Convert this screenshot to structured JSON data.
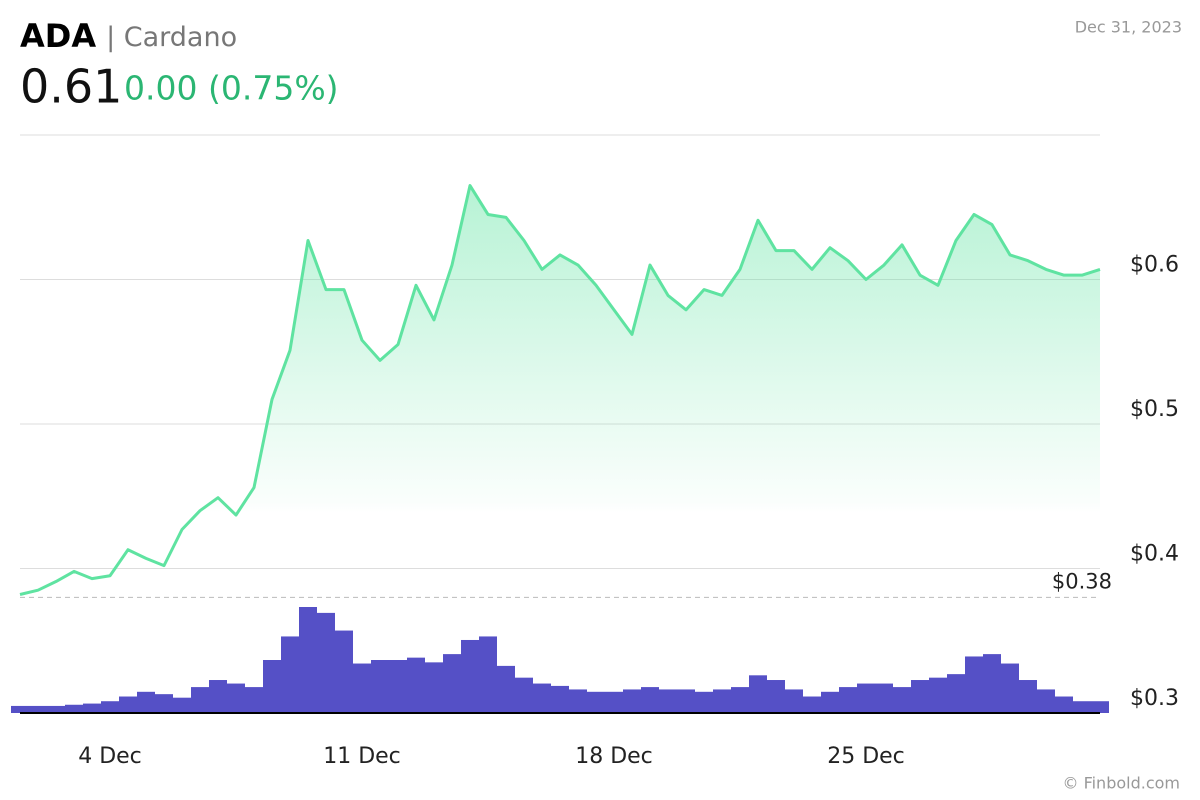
{
  "header": {
    "symbol": "ADA",
    "name": "| Cardano",
    "price": "0.61",
    "change": "0.00 (0.75%)",
    "date": "Dec 31, 2023",
    "source": "© Finbold.com"
  },
  "chart_data": {
    "type": "line",
    "color": "#5fe3a1",
    "x": [
      1.5,
      2,
      2.5,
      3,
      3.5,
      4,
      4.5,
      5,
      5.5,
      6,
      6.5,
      7,
      7.5,
      8,
      8.5,
      9,
      9.5,
      10,
      10.5,
      11,
      11.5,
      12,
      12.5,
      13,
      13.5,
      14,
      14.5,
      15,
      15.5,
      16,
      16.5,
      17,
      17.5,
      18,
      18.5,
      19,
      19.5,
      20,
      20.5,
      21,
      21.5,
      22,
      22.5,
      23,
      23.5,
      24,
      24.5,
      25,
      25.5,
      26,
      26.5,
      27,
      27.5,
      28,
      28.5,
      29,
      29.5,
      30,
      30.5,
      31,
      31.5
    ],
    "values": [
      0.382,
      0.385,
      0.391,
      0.398,
      0.393,
      0.395,
      0.413,
      0.407,
      0.402,
      0.427,
      0.44,
      0.449,
      0.437,
      0.456,
      0.517,
      0.551,
      0.627,
      0.593,
      0.593,
      0.558,
      0.544,
      0.555,
      0.596,
      0.572,
      0.61,
      0.665,
      0.645,
      0.643,
      0.627,
      0.607,
      0.617,
      0.61,
      0.596,
      0.579,
      0.562,
      0.61,
      0.589,
      0.579,
      0.593,
      0.589,
      0.607,
      0.641,
      0.62,
      0.62,
      0.607,
      0.622,
      0.613,
      0.6,
      0.61,
      0.624,
      0.603,
      0.596,
      0.627,
      0.645,
      0.638,
      0.617,
      0.613,
      0.607,
      0.603,
      0.603,
      0.607
    ],
    "volume": {
      "color": "#5550c6",
      "values": [
        6,
        6,
        6,
        7,
        8,
        10,
        14,
        18,
        16,
        13,
        22,
        28,
        25,
        22,
        45,
        65,
        90,
        85,
        70,
        42,
        45,
        45,
        47,
        43,
        50,
        62,
        65,
        40,
        30,
        25,
        23,
        20,
        18,
        18,
        20,
        22,
        20,
        20,
        18,
        20,
        22,
        32,
        28,
        20,
        14,
        18,
        22,
        25,
        25,
        22,
        28,
        30,
        33,
        48,
        50,
        42,
        28,
        20,
        14,
        10,
        10
      ]
    },
    "xlim": [
      1.5,
      31.5
    ],
    "xticks": [
      {
        "value": 4,
        "label": "4 Dec"
      },
      {
        "value": 11,
        "label": "11 Dec"
      },
      {
        "value": 18,
        "label": "18 Dec"
      },
      {
        "value": 25,
        "label": "25 Dec"
      }
    ],
    "ylim": [
      0.3,
      0.7
    ],
    "yticks": [
      {
        "value": 0.3,
        "label": "$0.3"
      },
      {
        "value": 0.4,
        "label": "$0.4"
      },
      {
        "value": 0.5,
        "label": "$0.5"
      },
      {
        "value": 0.6,
        "label": "$0.6"
      }
    ],
    "reference_line": {
      "value": 0.38,
      "label": "$0.38"
    },
    "grid": true
  }
}
